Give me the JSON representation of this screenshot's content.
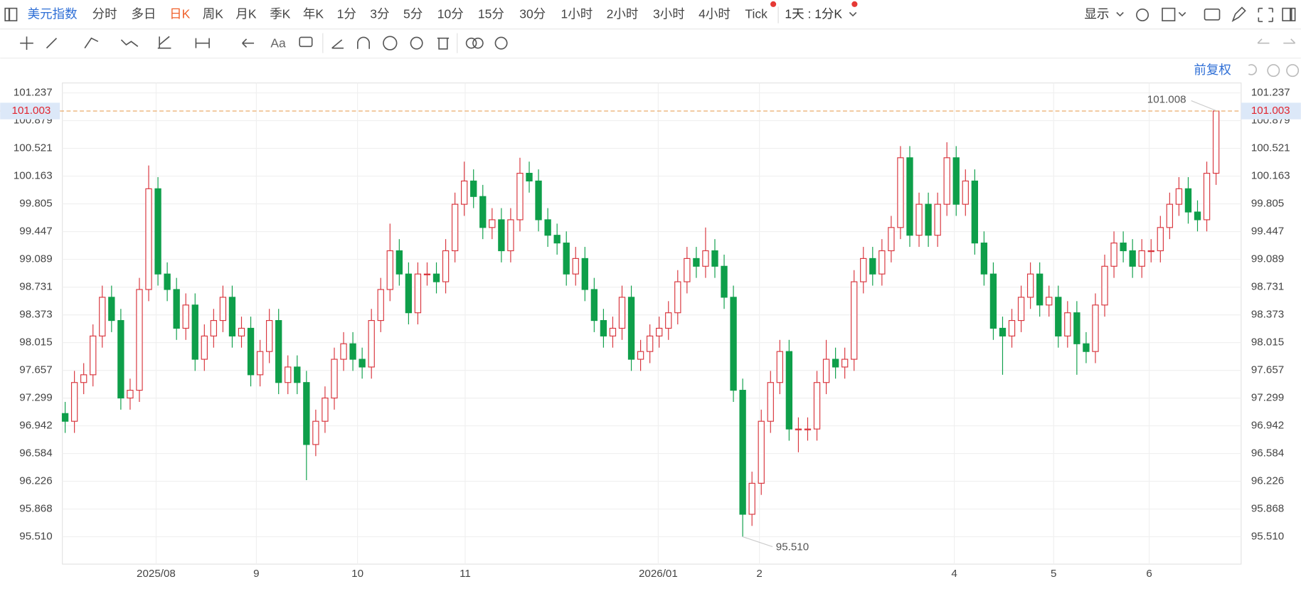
{
  "toolbar": {
    "symbol": "美元指数",
    "periods": [
      "分时",
      "多日",
      "日K",
      "周K",
      "月K",
      "季K",
      "年K",
      "1分",
      "3分",
      "5分",
      "10分",
      "15分",
      "30分",
      "1小时",
      "2小时",
      "3小时",
      "4小时",
      "Tick"
    ],
    "active_period": 2,
    "combo": "1天 : 1分K",
    "display": "显示"
  },
  "drawing_tools": {
    "text_tool": "Aa"
  },
  "adjust": "前复权",
  "chart_data": {
    "type": "candlestick",
    "open": [
      97.1,
      97.0,
      97.5,
      97.6,
      98.1,
      98.6,
      98.3,
      97.3,
      97.4,
      98.7,
      100.0,
      98.9,
      98.7,
      98.2,
      98.5,
      97.8,
      98.1,
      98.3,
      98.6,
      98.1,
      98.2,
      97.6,
      97.9,
      98.3,
      97.5,
      97.7,
      97.5,
      96.7,
      97.0,
      97.3,
      97.8,
      98.0,
      97.8,
      97.7,
      98.3,
      98.7,
      99.2,
      98.9,
      98.4,
      98.9,
      98.9,
      98.8,
      99.2,
      99.8,
      100.1,
      99.9,
      99.5,
      99.6,
      99.2,
      99.6,
      100.2,
      100.1,
      99.6,
      99.4,
      99.3,
      98.9,
      99.1,
      98.7,
      98.3,
      98.1,
      98.2,
      98.6,
      97.8,
      97.9,
      98.1,
      98.2,
      98.4,
      98.8,
      99.1,
      99.0,
      99.2,
      99.0,
      98.6,
      97.4,
      95.8,
      96.2,
      97.0,
      97.5,
      97.9,
      96.9,
      96.9,
      96.9,
      97.5,
      97.8,
      97.7,
      97.8,
      98.8,
      99.1,
      98.9,
      99.2,
      99.5,
      100.4,
      99.4,
      99.8,
      99.4,
      99.8,
      100.4,
      99.8,
      100.1,
      99.3,
      98.9,
      98.2,
      98.1,
      98.3,
      98.6,
      98.9,
      98.5,
      98.6,
      98.1,
      98.4,
      98.0,
      97.9,
      98.5,
      99.0,
      99.3,
      99.2,
      99.0,
      99.2,
      99.2,
      99.5,
      99.8,
      100.0,
      99.7,
      99.6,
      100.2
    ],
    "high": [
      97.25,
      97.65,
      97.75,
      98.25,
      98.75,
      98.75,
      98.45,
      97.55,
      98.85,
      100.3,
      100.15,
      99.05,
      98.85,
      98.65,
      98.65,
      98.25,
      98.45,
      98.75,
      98.75,
      98.35,
      98.35,
      98.05,
      98.45,
      98.45,
      97.85,
      97.85,
      97.65,
      97.15,
      97.45,
      97.95,
      98.15,
      98.15,
      97.95,
      98.45,
      98.85,
      99.55,
      99.35,
      99.05,
      99.05,
      99.05,
      99.05,
      99.35,
      99.95,
      100.35,
      100.25,
      100.05,
      99.75,
      99.75,
      99.75,
      100.4,
      100.35,
      100.25,
      99.75,
      99.55,
      99.45,
      99.25,
      99.25,
      98.85,
      98.45,
      98.35,
      98.75,
      98.75,
      98.05,
      98.25,
      98.35,
      98.55,
      98.95,
      99.25,
      99.25,
      99.5,
      99.35,
      99.15,
      98.75,
      97.55,
      96.35,
      97.15,
      97.65,
      98.05,
      98.05,
      97.05,
      97.05,
      97.65,
      98.05,
      97.95,
      97.95,
      98.95,
      99.25,
      99.25,
      99.35,
      99.65,
      100.55,
      100.55,
      99.95,
      99.95,
      99.95,
      100.6,
      100.55,
      100.25,
      100.25,
      99.45,
      99.05,
      98.35,
      98.45,
      98.75,
      99.05,
      99.05,
      98.75,
      98.75,
      98.55,
      98.55,
      98.15,
      98.65,
      99.15,
      99.45,
      99.45,
      99.35,
      99.35,
      99.35,
      99.65,
      99.95,
      100.15,
      100.15,
      99.85,
      100.35,
      101.008
    ],
    "low": [
      96.85,
      96.85,
      97.35,
      97.45,
      97.95,
      98.15,
      97.15,
      97.15,
      97.25,
      98.55,
      98.75,
      98.55,
      98.05,
      98.05,
      97.65,
      97.65,
      97.95,
      98.15,
      97.95,
      97.95,
      97.45,
      97.45,
      97.75,
      97.35,
      97.35,
      97.35,
      96.24,
      96.55,
      96.85,
      97.15,
      97.65,
      97.65,
      97.55,
      97.55,
      98.15,
      98.55,
      98.75,
      98.25,
      98.25,
      98.75,
      98.65,
      98.65,
      99.05,
      99.65,
      99.75,
      99.35,
      99.35,
      99.05,
      99.05,
      99.45,
      99.95,
      99.45,
      99.25,
      99.15,
      98.75,
      98.75,
      98.55,
      98.15,
      97.95,
      97.95,
      98.05,
      97.65,
      97.65,
      97.75,
      97.95,
      98.05,
      98.25,
      98.65,
      98.85,
      98.85,
      98.85,
      98.45,
      97.25,
      95.51,
      95.65,
      96.05,
      96.85,
      97.35,
      96.75,
      96.6,
      96.75,
      96.75,
      97.35,
      97.55,
      97.55,
      97.65,
      98.65,
      98.75,
      98.75,
      99.05,
      99.35,
      99.25,
      99.25,
      99.25,
      99.25,
      99.65,
      99.65,
      99.65,
      99.15,
      98.75,
      98.05,
      97.6,
      97.95,
      98.15,
      98.45,
      98.35,
      98.35,
      97.95,
      97.95,
      97.6,
      97.75,
      97.75,
      98.35,
      98.85,
      99.05,
      98.85,
      98.85,
      99.05,
      99.05,
      99.35,
      99.65,
      99.55,
      99.45,
      99.45,
      100.05
    ],
    "close": [
      97.0,
      97.5,
      97.6,
      98.1,
      98.6,
      98.3,
      97.3,
      97.4,
      98.7,
      100.0,
      98.9,
      98.7,
      98.2,
      98.5,
      97.8,
      98.1,
      98.3,
      98.6,
      98.1,
      98.2,
      97.6,
      97.9,
      98.3,
      97.5,
      97.7,
      97.5,
      96.7,
      97.0,
      97.3,
      97.8,
      98.0,
      97.8,
      97.7,
      98.3,
      98.7,
      99.2,
      98.9,
      98.4,
      98.9,
      98.9,
      98.8,
      99.2,
      99.8,
      100.1,
      99.9,
      99.5,
      99.6,
      99.2,
      99.6,
      100.2,
      100.1,
      99.6,
      99.4,
      99.3,
      98.9,
      99.1,
      98.7,
      98.3,
      98.1,
      98.2,
      98.6,
      97.8,
      97.9,
      98.1,
      98.2,
      98.4,
      98.8,
      99.1,
      99.0,
      99.2,
      99.0,
      98.6,
      97.4,
      95.8,
      96.2,
      97.0,
      97.5,
      97.9,
      96.9,
      96.9,
      96.9,
      97.5,
      97.8,
      97.7,
      97.8,
      98.8,
      99.1,
      98.9,
      99.2,
      99.5,
      100.4,
      99.4,
      99.8,
      99.4,
      99.8,
      100.4,
      99.8,
      100.1,
      99.3,
      98.9,
      98.2,
      98.1,
      98.3,
      98.6,
      98.9,
      98.5,
      98.6,
      98.1,
      98.4,
      98.0,
      97.9,
      98.5,
      99.0,
      99.3,
      99.2,
      99.0,
      99.2,
      99.2,
      99.5,
      99.8,
      100.0,
      99.7,
      99.6,
      100.2,
      101.003
    ],
    "up_color": "#d9363e",
    "down_color": "#0e9f4a",
    "last_price_color": "#e8a25a",
    "xlim": [
      -0.3,
      126.7
    ],
    "xticks": [
      {
        "value": 9.8,
        "label": "2025/08"
      },
      {
        "value": 20.6,
        "label": "9"
      },
      {
        "value": 31.5,
        "label": "10"
      },
      {
        "value": 43.1,
        "label": "11"
      },
      {
        "value": 63.9,
        "label": "2026/01"
      },
      {
        "value": 74.8,
        "label": "2"
      },
      {
        "value": 95.8,
        "label": "4"
      },
      {
        "value": 106.5,
        "label": "5"
      },
      {
        "value": 116.8,
        "label": "6"
      }
    ],
    "ylim": [
      95.157,
      101.365
    ],
    "yticks": [
      101.237,
      100.879,
      100.521,
      100.163,
      99.805,
      99.447,
      99.089,
      98.731,
      98.373,
      98.015,
      97.657,
      97.299,
      96.942,
      96.584,
      96.226,
      95.868,
      {
        "value": 95.51,
        "label": "95.510"
      }
    ],
    "annotations": [
      {
        "value": 95.51,
        "label": "95.510"
      }
    ],
    "grid": true
  }
}
